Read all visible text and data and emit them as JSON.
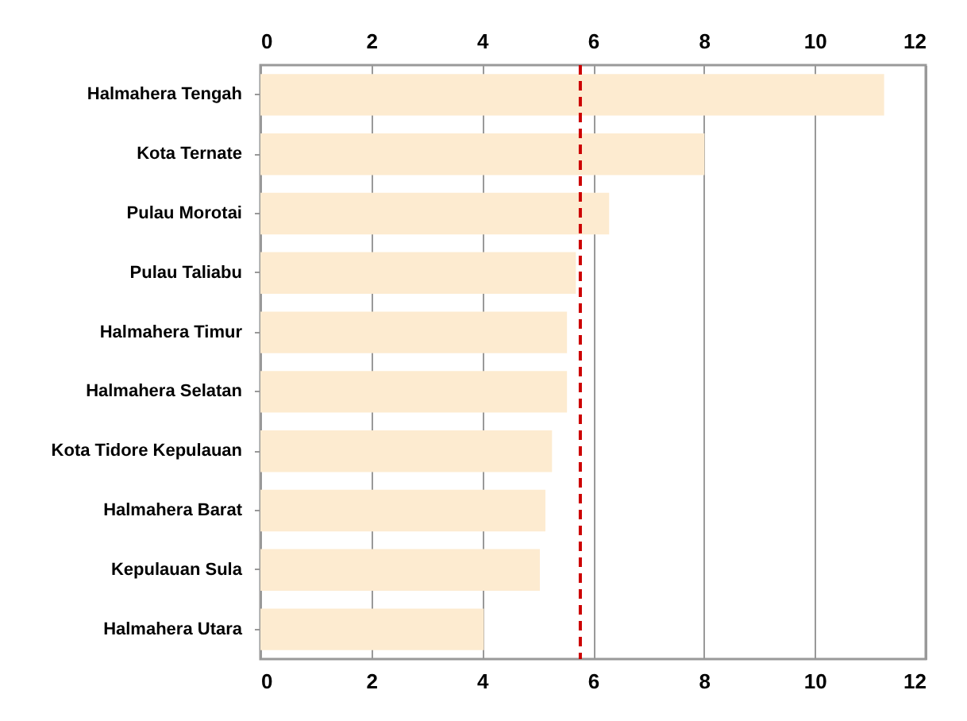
{
  "chart_data": {
    "type": "bar",
    "orientation": "horizontal",
    "categories": [
      "Halmahera Tengah",
      "Kota Ternate",
      "Pulau Morotai",
      "Pulau Taliabu",
      "Halmahera Timur",
      "Halmahera Selatan",
      "Kota Tidore Kepulauan",
      "Halmahera Barat",
      "Kepulauan Sula",
      "Halmahera Utara"
    ],
    "values": [
      11.25,
      8.01,
      6.29,
      5.69,
      5.53,
      5.53,
      5.26,
      5.14,
      5.04,
      4.03
    ],
    "color": "#fdebd0",
    "xlim": [
      0,
      12
    ],
    "xticks": [
      0,
      2,
      4,
      6,
      8,
      10,
      12
    ],
    "x2lim": [
      0,
      12
    ],
    "x2ticks": [
      0,
      2,
      4,
      6,
      8,
      10,
      12
    ],
    "grid": "x",
    "ref_lines": [
      {
        "axis": "x",
        "value": 5.77,
        "color": "#cc0000",
        "line_style": "dashed"
      }
    ]
  }
}
